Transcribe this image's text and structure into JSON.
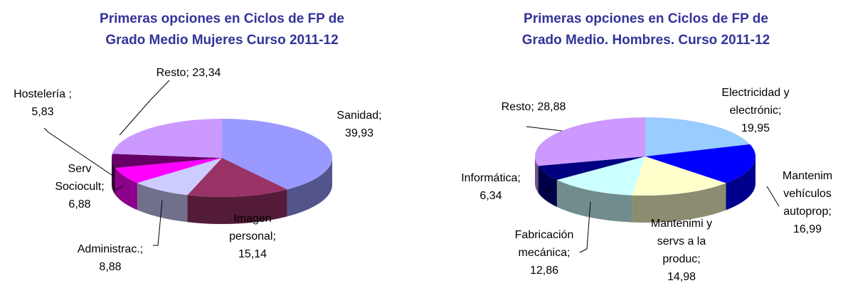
{
  "chart_data": [
    {
      "type": "pie",
      "title": [
        "Primeras opciones en Ciclos de FP de",
        "Grado Medio Mujeres Curso 2011-12"
      ],
      "label_separator": ";",
      "categories": [
        "Sanidad",
        "Imagen personal",
        "Administrac.",
        "Serv Sociocult",
        "Hostelería ",
        "Resto"
      ],
      "values": [
        39.93,
        15.14,
        8.88,
        6.88,
        5.83,
        23.34
      ],
      "value_labels": [
        "39,93",
        "15,14",
        "8,88",
        "6,88",
        "5,83",
        "23,34"
      ],
      "colors": [
        "#9999ff",
        "#993366",
        "#ccccff",
        "#ff00ff",
        "#660066",
        "#cc99ff"
      ]
    },
    {
      "type": "pie",
      "title": [
        "Primeras opciones en Ciclos de FP de",
        "Grado Medio. Hombres. Curso 2011-12"
      ],
      "label_separator": ";",
      "categories": [
        "Electricidad y electrónic",
        "Mantenim vehículos autoprop",
        "Mantenimi y servs a la produc",
        "Fabricación mecánica",
        "Informática",
        "Resto"
      ],
      "values": [
        19.95,
        16.99,
        14.98,
        12.86,
        6.34,
        28.88
      ],
      "value_labels": [
        "19,95",
        "16,99",
        "14,98",
        "12,86",
        "6,34",
        "28,88"
      ],
      "colors": [
        "#99ccff",
        "#0000ff",
        "#ffffcc",
        "#ccffff",
        "#000080",
        "#cc99ff"
      ]
    }
  ]
}
